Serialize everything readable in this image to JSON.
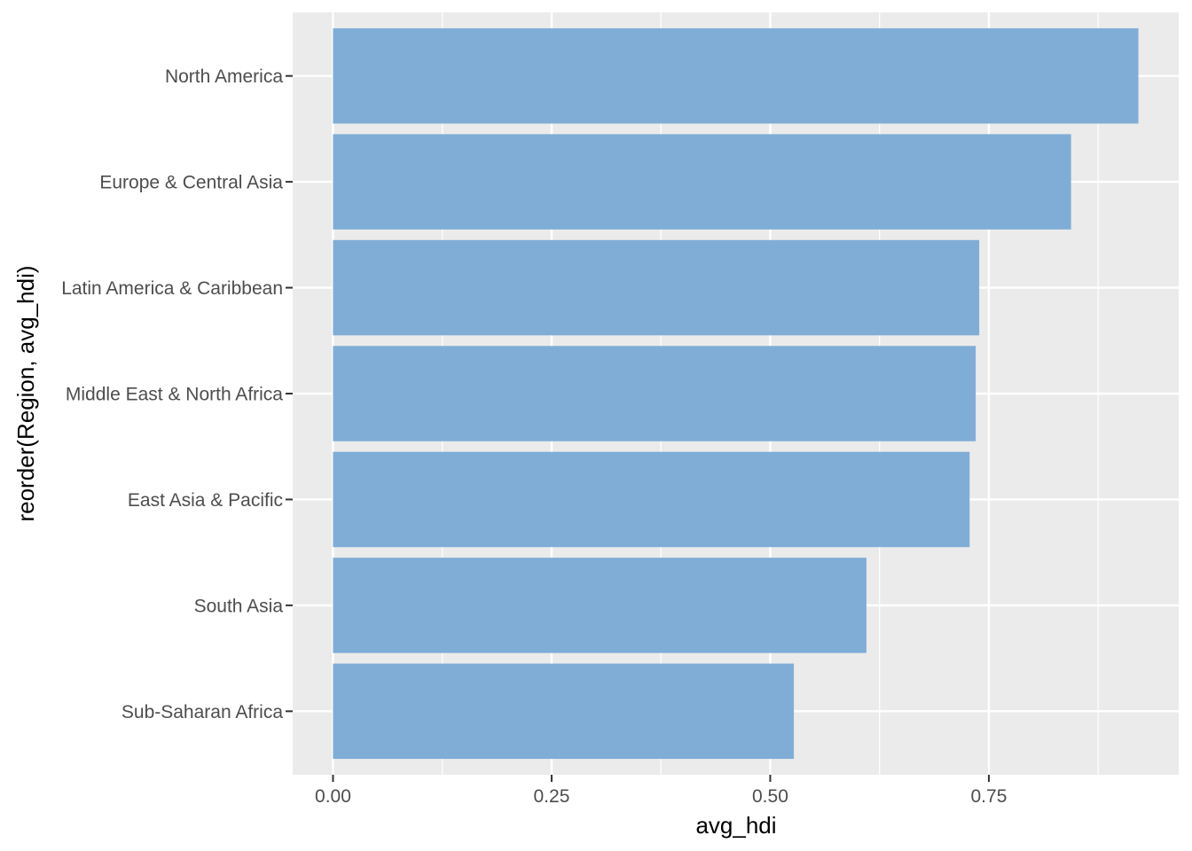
{
  "chart_data": {
    "type": "bar",
    "orientation": "horizontal",
    "xlabel": "avg_hdi",
    "ylabel": "reorder(Region, avg_hdi)",
    "categories": [
      "North America",
      "Europe & Central Asia",
      "Latin America & Caribbean",
      "Middle East & North Africa",
      "East Asia & Pacific",
      "South Asia",
      "Sub-Saharan Africa"
    ],
    "values": [
      0.921,
      0.844,
      0.739,
      0.735,
      0.728,
      0.61,
      0.527
    ],
    "xlim": [
      -0.0461,
      0.9671
    ],
    "x_ticks": [
      0,
      0.25,
      0.5,
      0.75
    ],
    "x_tick_labels": [
      "0.00",
      "0.25",
      "0.50",
      "0.75"
    ],
    "x_minor_ticks": [
      0.125,
      0.375,
      0.625,
      0.875
    ],
    "grid": true,
    "colors": {
      "bar": "#7fadd6",
      "panel_background": "#ebebeb",
      "grid_line": "#ffffff",
      "tick_text": "#4d4d4d",
      "tick_mark": "#333333"
    }
  }
}
